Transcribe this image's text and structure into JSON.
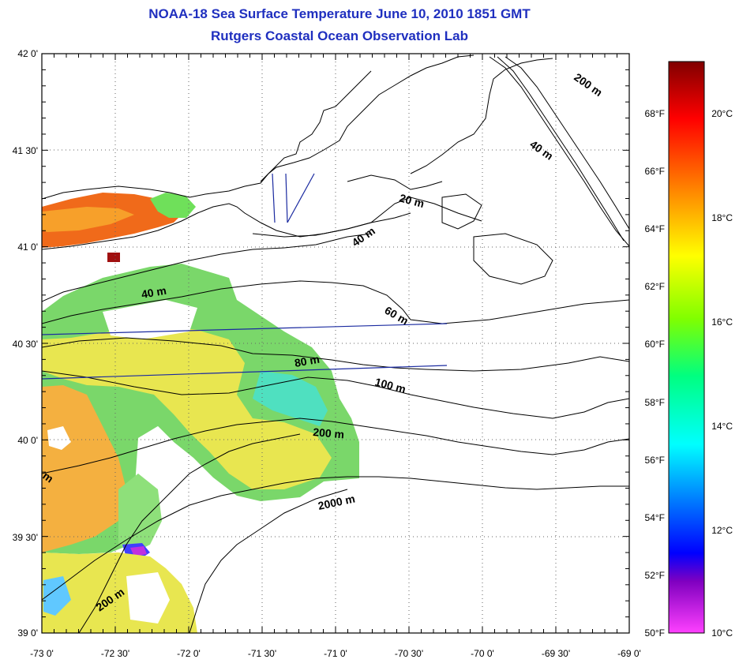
{
  "title": "NOAA-18 Sea Surface Temperature June 10, 2010 1851 GMT",
  "subtitle": "Rutgers Coastal Ocean Observation Lab",
  "lat_labels": [
    "42 0'",
    "41 30'",
    "41 0'",
    "40 30'",
    "40 0'",
    "39 30'",
    "39 0'"
  ],
  "lon_labels": [
    "-73 0'",
    "-72 30'",
    "-72 0'",
    "-71 30'",
    "-71 0'",
    "-70 30'",
    "-70 0'",
    "-69 30'",
    "-69 0'"
  ],
  "colorbar": {
    "fahrenheit_labels": [
      "68°F",
      "66°F",
      "64°F",
      "62°F",
      "60°F",
      "58°F",
      "56°F",
      "54°F",
      "52°F",
      "50°F"
    ],
    "celsius_labels": [
      "20°C",
      "18°C",
      "16°C",
      "14°C",
      "12°C",
      "10°C"
    ],
    "colors": [
      "#ff40ff",
      "#8000c0",
      "#0000ff",
      "#00ffff",
      "#00ff80",
      "#80ff00",
      "#ffff00",
      "#ff8000",
      "#ff0000",
      "#800000"
    ]
  },
  "depth_labels": [
    "200 m",
    "40 m",
    "20 m",
    "40 m",
    "40 m",
    "60 m",
    "80 m",
    "100 m",
    "200 m",
    "2000 m",
    "200 m",
    "m"
  ],
  "map": {
    "extent_lon": [
      -73.0,
      -69.0
    ],
    "extent_lat": [
      39.0,
      42.0
    ],
    "land_color": "#ffffff",
    "contour_color": "#000000",
    "transect_color": "#1a2aa0"
  }
}
